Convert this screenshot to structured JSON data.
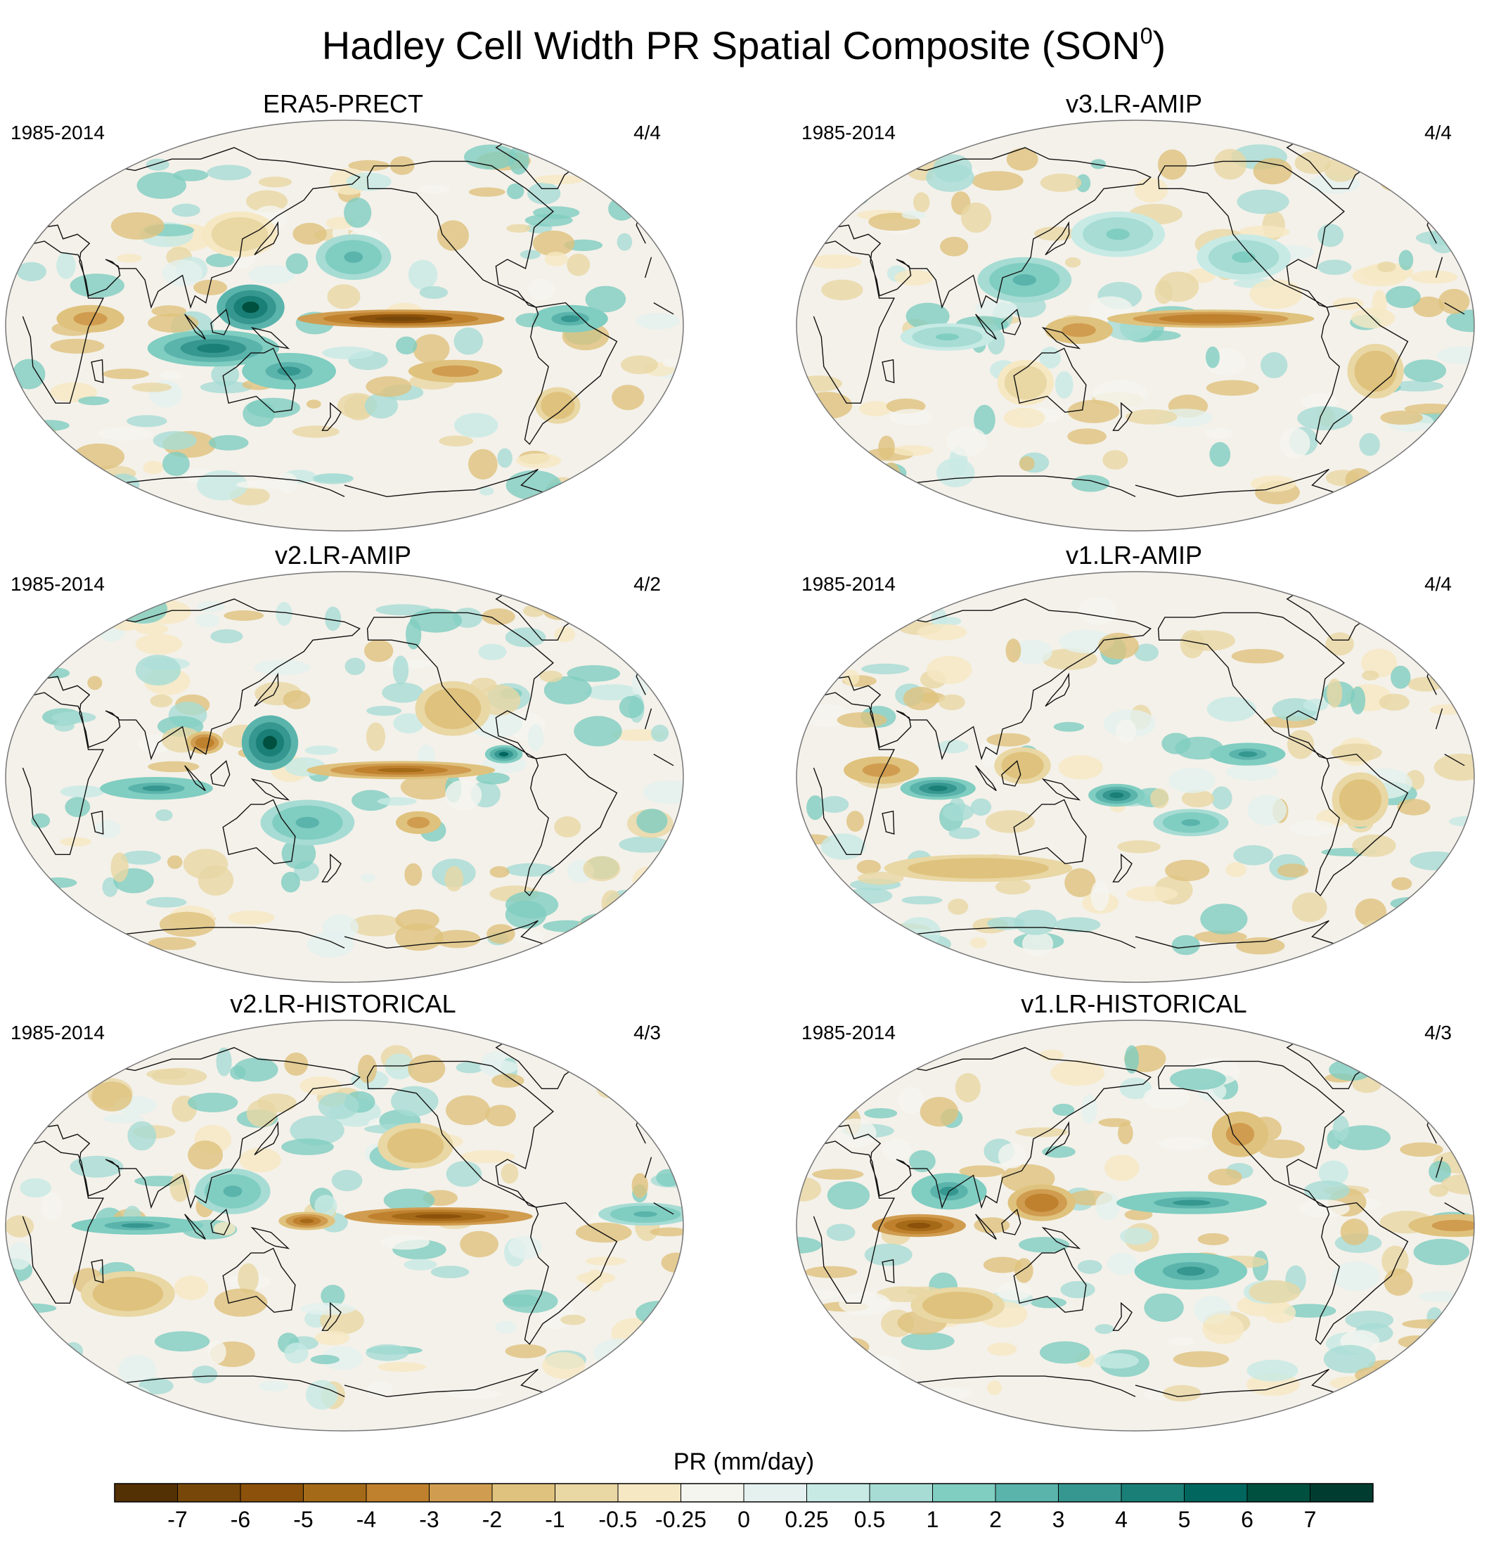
{
  "figure": {
    "title": "Hadley Cell Width PR Spatial Composite (SON",
    "title_superscript": "0",
    "title_suffix": ")"
  },
  "chart_data": {
    "type": "heatmap",
    "projection": "Robinson-like global map",
    "panels": [
      {
        "name": "ERA5-PRECT",
        "period": "1985-2014",
        "ratio": "4/4",
        "patterns": [
          {
            "lon": -150,
            "lat": 3,
            "w": 55,
            "h": 4,
            "v": -7
          },
          {
            "lon": 130,
            "lat": 8,
            "w": 18,
            "h": 10,
            "v": 6
          },
          {
            "lon": 110,
            "lat": -10,
            "w": 35,
            "h": 8,
            "v": 4
          },
          {
            "lon": 150,
            "lat": -20,
            "w": 25,
            "h": 8,
            "v": 3
          },
          {
            "lon": -60,
            "lat": 3,
            "w": 20,
            "h": 6,
            "v": 3
          },
          {
            "lon": -120,
            "lat": -20,
            "w": 25,
            "h": 5,
            "v": -3
          },
          {
            "lon": 45,
            "lat": 3,
            "w": 18,
            "h": 6,
            "v": -3
          },
          {
            "lon": -175,
            "lat": 30,
            "w": 20,
            "h": 10,
            "v": 2
          },
          {
            "lon": -60,
            "lat": -35,
            "w": 12,
            "h": 8,
            "v": -2
          },
          {
            "lon": 120,
            "lat": 40,
            "w": 20,
            "h": 10,
            "v": -1
          }
        ]
      },
      {
        "name": "v3.LR-AMIP",
        "period": "1985-2014",
        "ratio": "4/4",
        "patterns": [
          {
            "lon": -140,
            "lat": 3,
            "w": 55,
            "h": 4,
            "v": -4
          },
          {
            "lon": 150,
            "lat": -2,
            "w": 18,
            "h": 6,
            "v": -3
          },
          {
            "lon": 120,
            "lat": 20,
            "w": 25,
            "h": 10,
            "v": 2
          },
          {
            "lon": 80,
            "lat": -5,
            "w": 25,
            "h": 6,
            "v": 1
          },
          {
            "lon": -120,
            "lat": 30,
            "w": 25,
            "h": 10,
            "v": 1
          },
          {
            "lon": -50,
            "lat": -20,
            "w": 15,
            "h": 12,
            "v": -2
          },
          {
            "lon": 120,
            "lat": -25,
            "w": 15,
            "h": 10,
            "v": -1
          },
          {
            "lon": 170,
            "lat": 40,
            "w": 25,
            "h": 10,
            "v": 1
          }
        ]
      },
      {
        "name": "v2.LR-AMIP",
        "period": "1985-2014",
        "ratio": "4/2",
        "patterns": [
          {
            "lon": -150,
            "lat": 3,
            "w": 50,
            "h": 4,
            "v": -5
          },
          {
            "lon": 140,
            "lat": 15,
            "w": 15,
            "h": 12,
            "v": 6
          },
          {
            "lon": -95,
            "lat": 10,
            "w": 10,
            "h": 4,
            "v": 5
          },
          {
            "lon": 80,
            "lat": -5,
            "w": 30,
            "h": 5,
            "v": 3
          },
          {
            "lon": 160,
            "lat": -20,
            "w": 25,
            "h": 10,
            "v": 2
          },
          {
            "lon": 105,
            "lat": 15,
            "w": 10,
            "h": 5,
            "v": -4
          },
          {
            "lon": -140,
            "lat": -20,
            "w": 12,
            "h": 5,
            "v": -3
          },
          {
            "lon": -120,
            "lat": 30,
            "w": 20,
            "h": 12,
            "v": -2
          }
        ]
      },
      {
        "name": "v1.LR-AMIP",
        "period": "1985-2014",
        "ratio": "4/4",
        "patterns": [
          {
            "lon": -120,
            "lat": 10,
            "w": 20,
            "h": 5,
            "v": 3
          },
          {
            "lon": 75,
            "lat": -5,
            "w": 20,
            "h": 5,
            "v": 4
          },
          {
            "lon": 170,
            "lat": -8,
            "w": 15,
            "h": 5,
            "v": 4
          },
          {
            "lon": -150,
            "lat": -20,
            "w": 20,
            "h": 6,
            "v": 2
          },
          {
            "lon": 90,
            "lat": -40,
            "w": 50,
            "h": 6,
            "v": -2
          },
          {
            "lon": 45,
            "lat": 3,
            "w": 20,
            "h": 6,
            "v": -3
          },
          {
            "lon": 120,
            "lat": 5,
            "w": 15,
            "h": 8,
            "v": -2
          },
          {
            "lon": -60,
            "lat": -10,
            "w": 15,
            "h": 12,
            "v": -2
          }
        ]
      },
      {
        "name": "v2.LR-HISTORICAL",
        "period": "1985-2014",
        "ratio": "4/3",
        "patterns": [
          {
            "lon": -130,
            "lat": 4,
            "w": 50,
            "h": 4,
            "v": -6
          },
          {
            "lon": 160,
            "lat": 2,
            "w": 15,
            "h": 4,
            "v": -5
          },
          {
            "lon": 70,
            "lat": 0,
            "w": 35,
            "h": 4,
            "v": 3
          },
          {
            "lon": 120,
            "lat": 15,
            "w": 20,
            "h": 10,
            "v": 2
          },
          {
            "lon": -20,
            "lat": 5,
            "w": 25,
            "h": 5,
            "v": 2
          },
          {
            "lon": -140,
            "lat": 35,
            "w": 20,
            "h": 10,
            "v": -2
          },
          {
            "lon": 60,
            "lat": -30,
            "w": 25,
            "h": 10,
            "v": -2
          }
        ]
      },
      {
        "name": "v1.LR-HISTORICAL",
        "period": "1985-2014",
        "ratio": "4/3",
        "patterns": [
          {
            "lon": 65,
            "lat": 0,
            "w": 25,
            "h": 5,
            "v": -6
          },
          {
            "lon": -10,
            "lat": 0,
            "w": 25,
            "h": 5,
            "v": -3
          },
          {
            "lon": 130,
            "lat": 10,
            "w": 18,
            "h": 8,
            "v": -4
          },
          {
            "lon": -150,
            "lat": 10,
            "w": 40,
            "h": 5,
            "v": 3
          },
          {
            "lon": 80,
            "lat": 15,
            "w": 20,
            "h": 8,
            "v": 3
          },
          {
            "lon": -150,
            "lat": -20,
            "w": 30,
            "h": 8,
            "v": 3
          },
          {
            "lon": 80,
            "lat": -35,
            "w": 25,
            "h": 8,
            "v": -2
          },
          {
            "lon": -120,
            "lat": 40,
            "w": 15,
            "h": 10,
            "v": -3
          }
        ]
      }
    ],
    "colorbar": {
      "label": "PR (mm/day)",
      "tick_labels": [
        "-7",
        "-6",
        "-5",
        "-4",
        "-3",
        "-2",
        "-1",
        "-0.5",
        "-0.25",
        "0",
        "0.25",
        "0.5",
        "1",
        "2",
        "3",
        "4",
        "5",
        "6",
        "7"
      ],
      "colors": [
        "#543005",
        "#774709",
        "#8c510a",
        "#a56a18",
        "#bf812d",
        "#d09c4f",
        "#dfc27d",
        "#e9d7a4",
        "#f6e8c3",
        "#f5f5f0",
        "#e4f1ee",
        "#c7eae5",
        "#a6dcd4",
        "#80cdc1",
        "#5ab4ac",
        "#35978f",
        "#1a7f76",
        "#01665e",
        "#00503f",
        "#003c30"
      ]
    }
  }
}
